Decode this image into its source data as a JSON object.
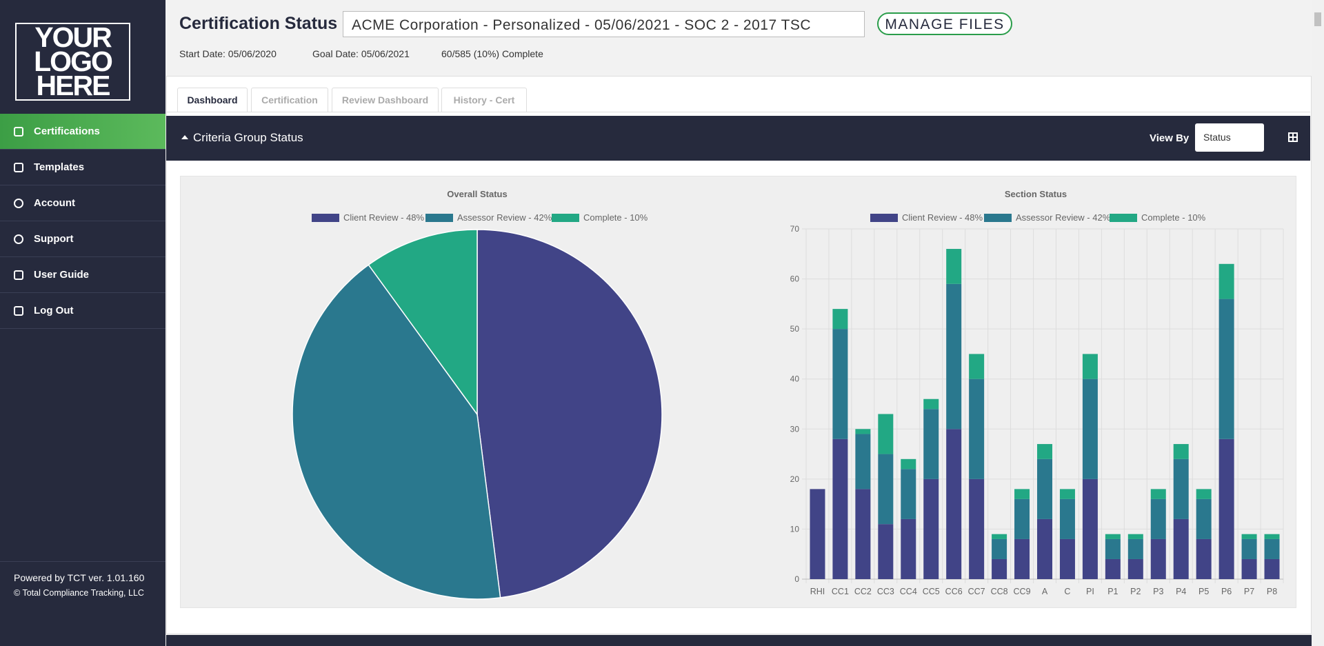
{
  "logo": [
    "YOUR",
    "LOGO",
    "HERE"
  ],
  "sidebar": {
    "nav": [
      "Certifications",
      "Templates",
      "Account",
      "Support",
      "User Guide",
      "Log Out"
    ],
    "footer": [
      "Powered by TCT ver. 1.01.160",
      "© Total Compliance Tracking, LLC"
    ]
  },
  "header": {
    "title": "Certification Status",
    "select": "ACME Corporation - Personalized - 05/06/2021 - SOC 2 - 2017 TSC",
    "button": "MANAGE FILES",
    "start_date": "Start Date: 05/06/2020",
    "goal_date": "Goal Date: 05/06/2021",
    "progress": "60/585 (10%) Complete"
  },
  "tabs": [
    "Dashboard",
    "Certification",
    "Review Dashboard",
    "History - Cert"
  ],
  "panel": {
    "title": "Criteria Group Status",
    "view_by": "View By",
    "view_by_select": "Status"
  },
  "chart_data": [
    {
      "type": "pie",
      "title": "Overall Status",
      "categories": [
        "Client Review - 48%",
        "Assessor Review - 42%",
        "Complete - 10%"
      ],
      "values": [
        48,
        42,
        10
      ],
      "colors": [
        "#414487",
        "#2a788e",
        "#22a884"
      ]
    },
    {
      "type": "stacked_bar",
      "title": "Section Status",
      "categories": [
        "RHI",
        "CC1",
        "CC2",
        "CC3",
        "CC4",
        "CC5",
        "CC6",
        "CC7",
        "CC8",
        "CC9",
        "A",
        "C",
        "PI",
        "P1",
        "P2",
        "P3",
        "P4",
        "P5",
        "P6",
        "P7",
        "P8"
      ],
      "series": [
        {
          "name": "Client Review - 48%",
          "color": "#414487",
          "values": [
            18,
            28,
            18,
            11,
            12,
            20,
            30,
            20,
            4,
            8,
            12,
            8,
            20,
            4,
            4,
            8,
            12,
            8,
            28,
            4,
            4
          ]
        },
        {
          "name": "Assessor Review - 42%",
          "color": "#2a788e",
          "values": [
            0,
            22,
            11,
            14,
            10,
            14,
            29,
            20,
            4,
            8,
            12,
            8,
            20,
            4,
            4,
            8,
            12,
            8,
            28,
            4,
            4
          ]
        },
        {
          "name": "Complete - 10%",
          "color": "#22a884",
          "values": [
            0,
            4,
            1,
            8,
            2,
            2,
            7,
            5,
            1,
            2,
            3,
            2,
            5,
            1,
            1,
            2,
            3,
            2,
            7,
            1,
            1
          ]
        }
      ],
      "ylim": [
        0,
        70
      ],
      "yticks": [
        0,
        10,
        20,
        30,
        40,
        50,
        60,
        70
      ],
      "grid": true
    }
  ]
}
